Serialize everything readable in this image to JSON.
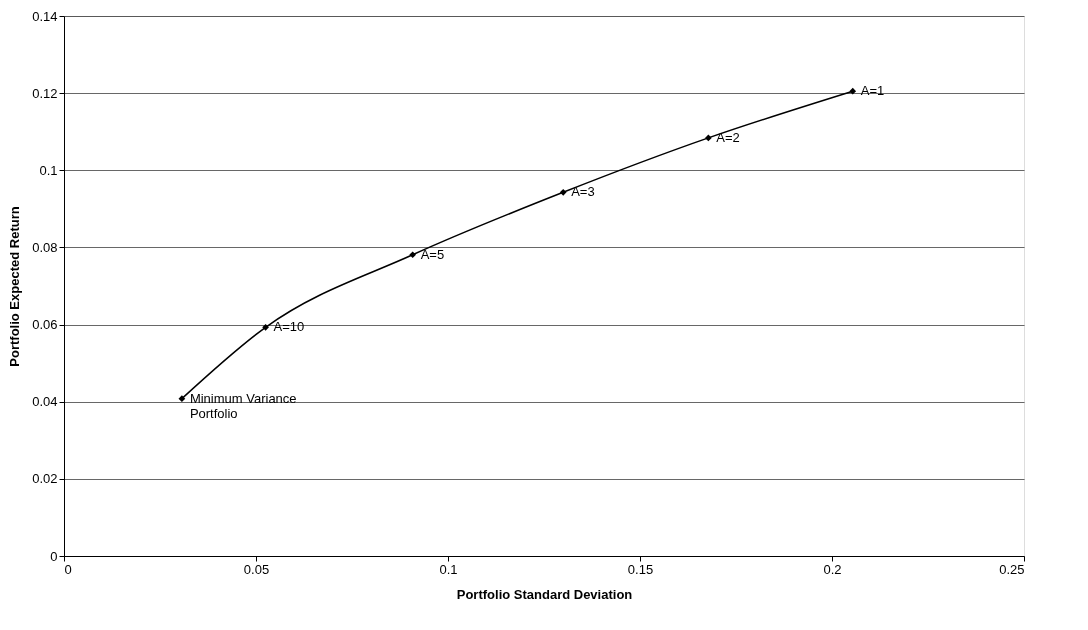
{
  "chart_data": {
    "type": "line",
    "xlabel": "Portfolio Standard Deviation",
    "ylabel": "Portfolio Expected Return",
    "x": [
      0.0307,
      0.0525,
      0.0908,
      0.13,
      0.1678,
      0.2054
    ],
    "series": [
      {
        "color": "#000000",
        "values": [
          0.0408,
          0.0593,
          0.0781,
          0.0943,
          0.1084,
          0.1205
        ]
      }
    ],
    "xlim": [
      0,
      0.25
    ],
    "xticks": [
      0,
      0.05,
      0.1,
      0.15,
      0.2,
      0.25
    ],
    "ylim": [
      0,
      0.14
    ],
    "yticks": [
      0,
      0.02,
      0.04,
      0.06,
      0.08,
      0.1,
      0.12,
      0.14
    ],
    "grid": "y",
    "marker": "diamond",
    "line_style": "solid",
    "annotations": [
      {
        "text": "Minimum Variance\nPortfolio",
        "x": 0.0307,
        "y": 0.0408
      },
      {
        "text": "A=10",
        "x": 0.0525,
        "y": 0.0593
      },
      {
        "text": "A=5",
        "x": 0.0908,
        "y": 0.0781
      },
      {
        "text": "A=3",
        "x": 0.13,
        "y": 0.0943
      },
      {
        "text": "A=2",
        "x": 0.1678,
        "y": 0.1084
      },
      {
        "text": "A=1",
        "x": 0.2054,
        "y": 0.1205
      }
    ]
  }
}
